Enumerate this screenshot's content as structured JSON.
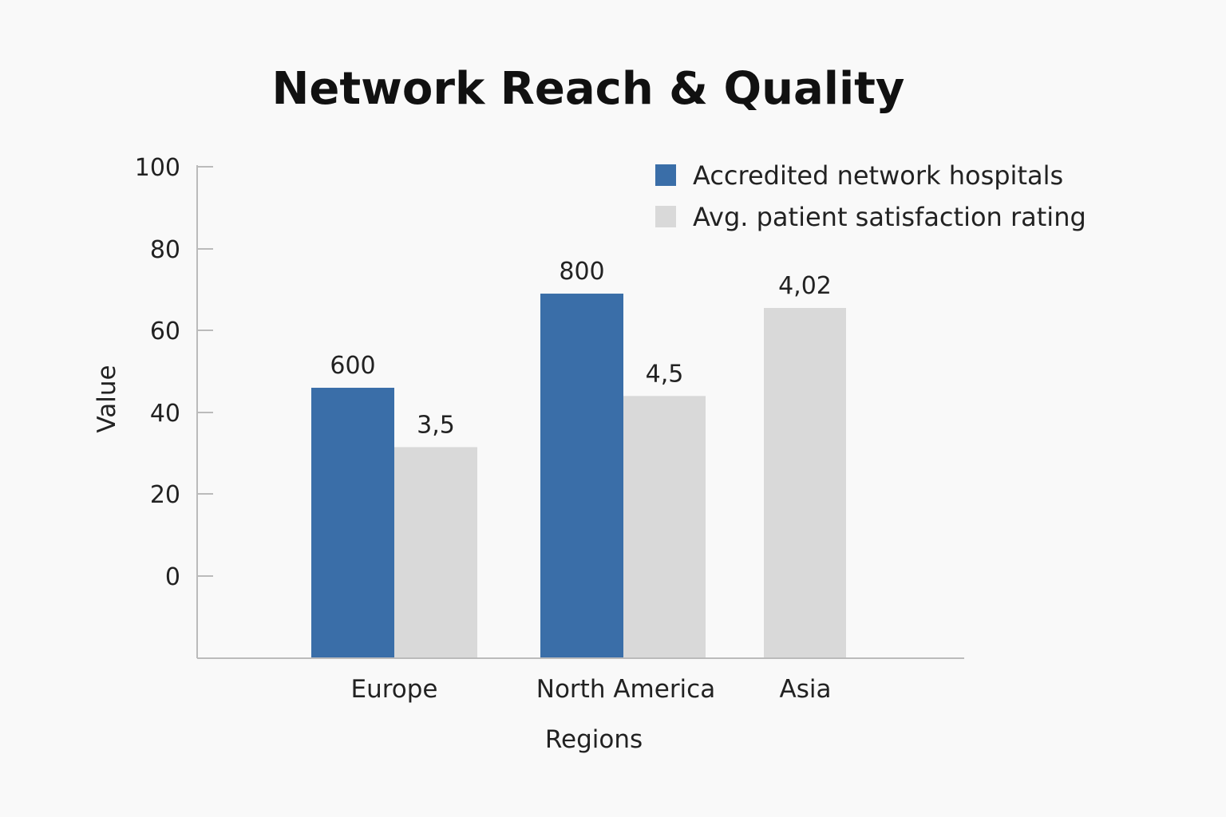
{
  "chart_data": {
    "type": "bar",
    "title": "Network Reach & Quality",
    "xlabel": "Regions",
    "ylabel": "Value",
    "yticks": [
      "100",
      "80",
      "60",
      "40",
      "20",
      "0"
    ],
    "categories": [
      "Europe",
      "North America",
      "Asia"
    ],
    "series": [
      {
        "name": "Accredited network hospitals",
        "color": "#3a6ea8",
        "bar_level": [
          46,
          69,
          null
        ],
        "labels": [
          "600",
          "800",
          ""
        ]
      },
      {
        "name": "Avg. patient satisfaction rating",
        "color": "#d9d9d9",
        "bar_level": [
          31.5,
          44,
          65.5
        ],
        "labels": [
          "3,5",
          "4,5",
          "4,02"
        ]
      }
    ],
    "legend_position": "top-right",
    "grid": false
  }
}
